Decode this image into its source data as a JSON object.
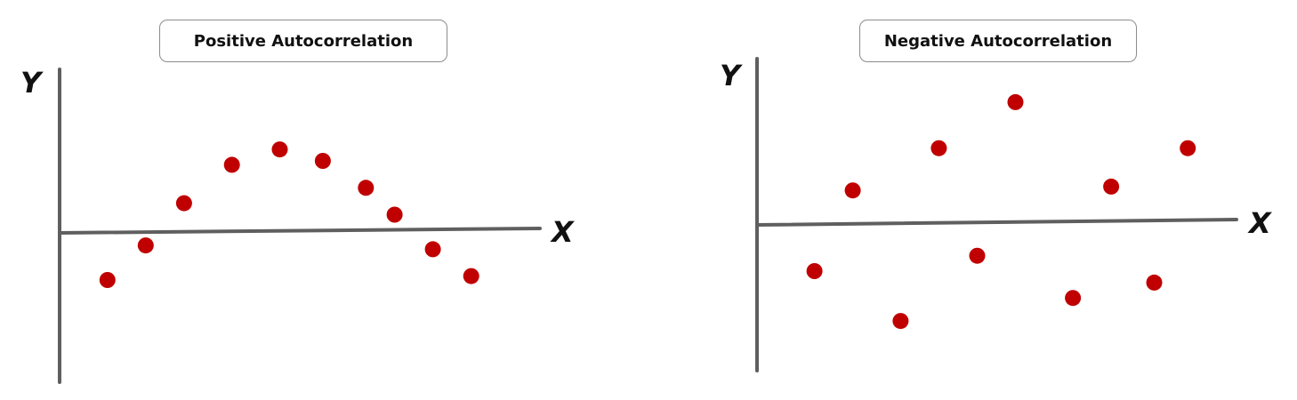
{
  "chart_data": [
    {
      "type": "scatter",
      "title": "Positive Autocorrelation",
      "xlabel": "X",
      "ylabel": "Y",
      "grid": false,
      "point_color": "#c00000",
      "axis_color": "#5f5f5f",
      "xlim": [
        0,
        10
      ],
      "ylim": [
        -3.5,
        4
      ],
      "series": [
        {
          "x": [
            1.0,
            1.8,
            2.6,
            3.6,
            4.6,
            5.5,
            6.4,
            7.0,
            7.8,
            8.6
          ],
          "y": [
            -1.3,
            -0.4,
            0.7,
            1.7,
            2.1,
            1.8,
            1.1,
            0.4,
            -0.5,
            -1.2
          ]
        }
      ]
    },
    {
      "type": "scatter",
      "title": "Negative Autocorrelation",
      "xlabel": "X",
      "ylabel": "Y",
      "grid": false,
      "point_color": "#c00000",
      "axis_color": "#5f5f5f",
      "xlim": [
        0,
        10
      ],
      "ylim": [
        -3.5,
        4
      ],
      "series": [
        {
          "x": [
            1.2,
            2.0,
            3.0,
            3.8,
            4.6,
            5.4,
            6.6,
            7.4,
            8.3,
            9.0
          ],
          "y": [
            -1.3,
            0.8,
            -2.6,
            1.9,
            -0.9,
            3.1,
            -2.0,
            0.9,
            -1.6,
            1.9
          ]
        }
      ]
    }
  ]
}
